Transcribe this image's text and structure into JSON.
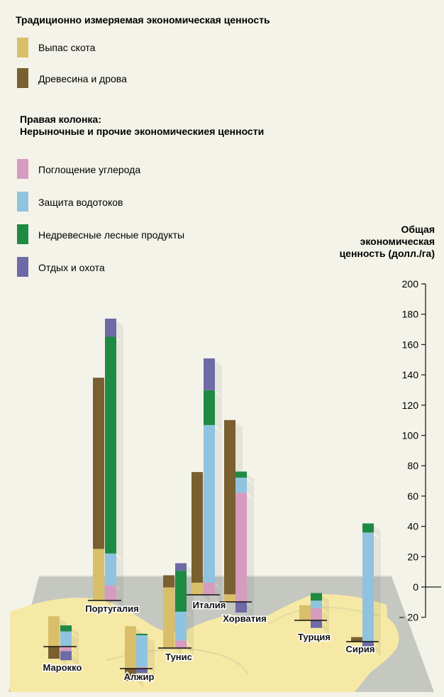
{
  "header": {
    "traditional_title": "Традиционно измеряемая экономическая ценность",
    "right_column_title_line1": "Правая колонка:",
    "right_column_title_line2": "Нерыночные и прочие экономическиея ценности"
  },
  "legend": {
    "traditional": [
      {
        "name": "Выпас скота",
        "color": "#d9bf69"
      },
      {
        "name": "Древесина и дрова",
        "color": "#7a6030"
      }
    ],
    "nonmarket": [
      {
        "name": "Поглощение углерода",
        "color": "#d69cc0"
      },
      {
        "name": "Защита водотоков",
        "color": "#8fc3df"
      },
      {
        "name": "Недревесные лесные продукты",
        "color": "#1e8a43"
      },
      {
        "name": "Отдых и охота",
        "color": "#6e6aa6"
      }
    ]
  },
  "axis": {
    "title_lines": [
      "Общая",
      "экономическая",
      "ценность (долл./га)"
    ]
  },
  "chart_data": {
    "type": "bar",
    "stacked": true,
    "grouped": true,
    "ylim": [
      -20,
      200
    ],
    "yticks": [
      200,
      180,
      160,
      140,
      120,
      100,
      80,
      60,
      40,
      20,
      0,
      -20
    ],
    "ytick_labels": [
      "200",
      "180",
      "160",
      "140",
      "120",
      "100",
      "80",
      "60",
      "40",
      "20",
      "0",
      "− 20"
    ],
    "categories": [
      "Марокко",
      "Португалия",
      "Алжир",
      "Тунис",
      "Италия",
      "Хорватия",
      "Турция",
      "Сирия"
    ],
    "traditional_series": [
      {
        "name": "Выпас скота",
        "values": [
          20,
          34,
          28,
          40,
          8,
          5,
          10,
          0
        ]
      },
      {
        "name": "Древесина и дрова",
        "values": [
          -8,
          113,
          -8,
          8,
          73,
          115,
          0,
          3
        ]
      }
    ],
    "nonmarket_series": [
      {
        "name": "Поглощение углерода",
        "values": [
          -3,
          10,
          1,
          5,
          8,
          72,
          8,
          0
        ]
      },
      {
        "name": "Защита водотоков",
        "values": [
          10,
          21,
          21,
          19,
          104,
          10,
          5,
          72
        ]
      },
      {
        "name": "Недревесные лесные продукты",
        "values": [
          4,
          143,
          1,
          27,
          23,
          4,
          5,
          6
        ]
      },
      {
        "name": "Отдых и охота",
        "values": [
          -6,
          12,
          -3,
          5,
          21,
          -7,
          -5,
          -5
        ]
      }
    ]
  }
}
